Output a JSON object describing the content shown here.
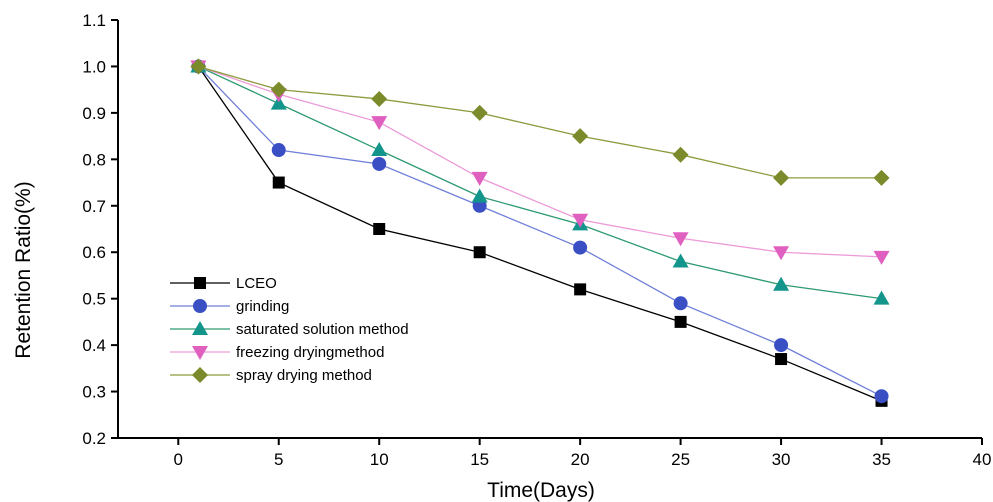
{
  "chart_data": {
    "type": "line",
    "title": "",
    "xlabel": "Time(Days)",
    "ylabel": "Retention Ratio(%)",
    "xlim": [
      -3,
      40
    ],
    "ylim": [
      0.2,
      1.1
    ],
    "x_ticks": [
      0,
      5,
      10,
      15,
      20,
      25,
      30,
      35,
      40
    ],
    "y_ticks": [
      0.2,
      0.3,
      0.4,
      0.5,
      0.6,
      0.7,
      0.8,
      0.9,
      1.0,
      1.1
    ],
    "x_tick_labels": [
      "0",
      "5",
      "10",
      "15",
      "20",
      "25",
      "30",
      "35",
      "40"
    ],
    "y_tick_labels": [
      "0.2",
      "0.3",
      "0.4",
      "0.5",
      "0.6",
      "0.7",
      "0.8",
      "0.9",
      "1.0",
      "1.1"
    ],
    "x": [
      1,
      5,
      10,
      15,
      20,
      25,
      30,
      35
    ],
    "legend_position": "lower-left",
    "grid": false,
    "series": [
      {
        "name": "LCEO",
        "marker": "square",
        "color": "#000000",
        "line_color": "#000000",
        "values": [
          1.0,
          0.75,
          0.65,
          0.6,
          0.52,
          0.45,
          0.37,
          0.28
        ]
      },
      {
        "name": "grinding",
        "marker": "circle",
        "color": "#3a4fc4",
        "line_color": "#6f7fd8",
        "values": [
          1.0,
          0.82,
          0.79,
          0.7,
          0.61,
          0.49,
          0.4,
          0.29
        ]
      },
      {
        "name": "saturated solution method",
        "marker": "triangle-up",
        "color": "#13958b",
        "line_color": "#2e9a70",
        "values": [
          1.0,
          0.92,
          0.82,
          0.72,
          0.66,
          0.58,
          0.53,
          0.5
        ]
      },
      {
        "name": "freezing dryingmethod",
        "marker": "triangle-down",
        "color": "#e060c0",
        "line_color": "#ec9ad8",
        "values": [
          1.0,
          0.94,
          0.88,
          0.76,
          0.67,
          0.63,
          0.6,
          0.59
        ]
      },
      {
        "name": "spray drying method",
        "marker": "diamond",
        "color": "#7b8a2a",
        "line_color": "#8f9a3e",
        "values": [
          1.0,
          0.95,
          0.93,
          0.9,
          0.85,
          0.81,
          0.76,
          0.76
        ]
      }
    ]
  }
}
